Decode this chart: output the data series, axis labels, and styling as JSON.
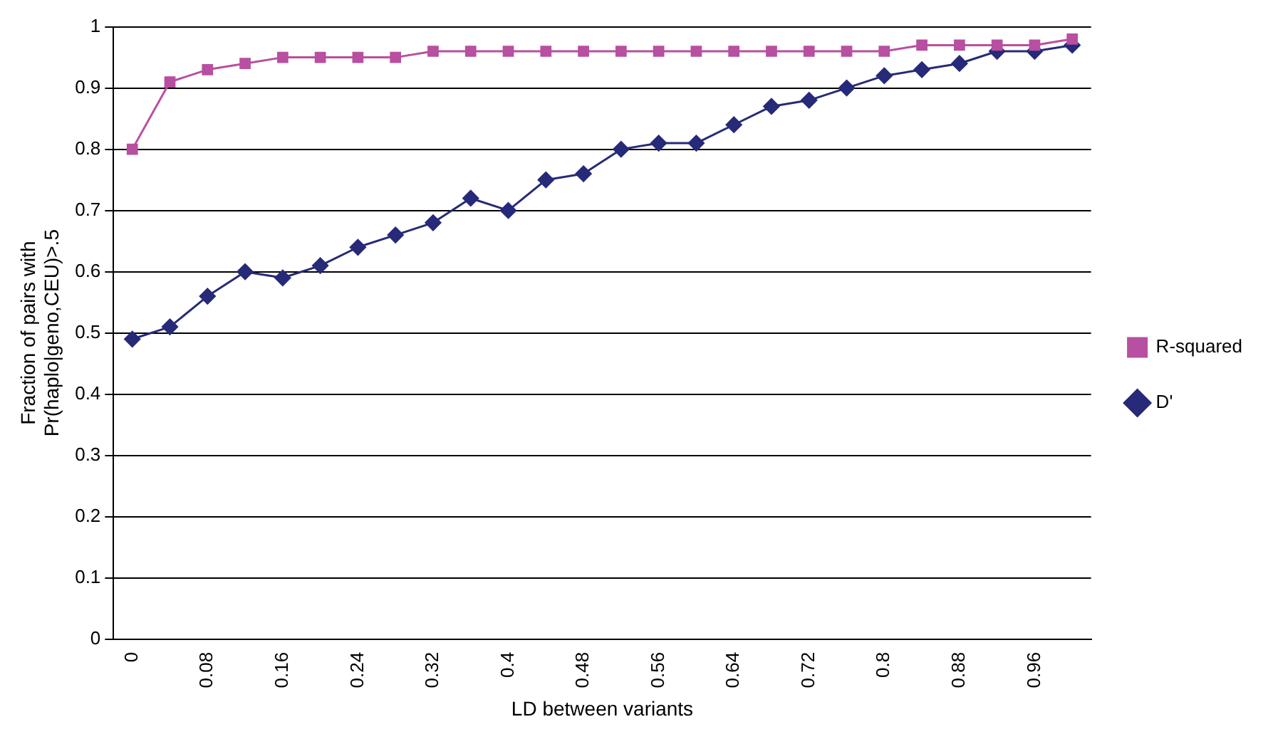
{
  "chart_data": {
    "type": "line",
    "xlabel": "LD between variants",
    "ylabel": "Fraction of pairs with\nPr(haplo|geno,CEU)>.5",
    "categories": [
      "0",
      null,
      "0.08",
      null,
      "0.16",
      null,
      "0.24",
      null,
      "0.32",
      null,
      "0.4",
      null,
      "0.48",
      null,
      "0.56",
      null,
      "0.64",
      null,
      "0.72",
      null,
      "0.8",
      null,
      "0.88",
      null,
      "0.96",
      null
    ],
    "series": [
      {
        "name": "D'",
        "color": "#262a78",
        "marker": "diamond",
        "values": [
          0.49,
          0.51,
          0.56,
          0.6,
          0.59,
          0.61,
          0.64,
          0.66,
          0.68,
          0.72,
          0.7,
          0.75,
          0.76,
          0.8,
          0.81,
          0.81,
          0.84,
          0.87,
          0.88,
          0.9,
          0.92,
          0.93,
          0.94,
          0.96,
          0.96,
          0.97
        ]
      },
      {
        "name": "R-squared",
        "color": "#b84fa0",
        "marker": "square",
        "values": [
          0.8,
          0.91,
          0.93,
          0.94,
          0.95,
          0.95,
          0.95,
          0.95,
          0.96,
          0.96,
          0.96,
          0.96,
          0.96,
          0.96,
          0.96,
          0.96,
          0.96,
          0.96,
          0.96,
          0.96,
          0.96,
          0.97,
          0.97,
          0.97,
          0.97,
          0.98
        ]
      }
    ],
    "ylim": [
      0,
      1
    ],
    "yticks": [
      0,
      0.1,
      0.2,
      0.3,
      0.4,
      0.5,
      0.6,
      0.7,
      0.8,
      0.9,
      1
    ],
    "grid": "y",
    "legend": "right"
  }
}
